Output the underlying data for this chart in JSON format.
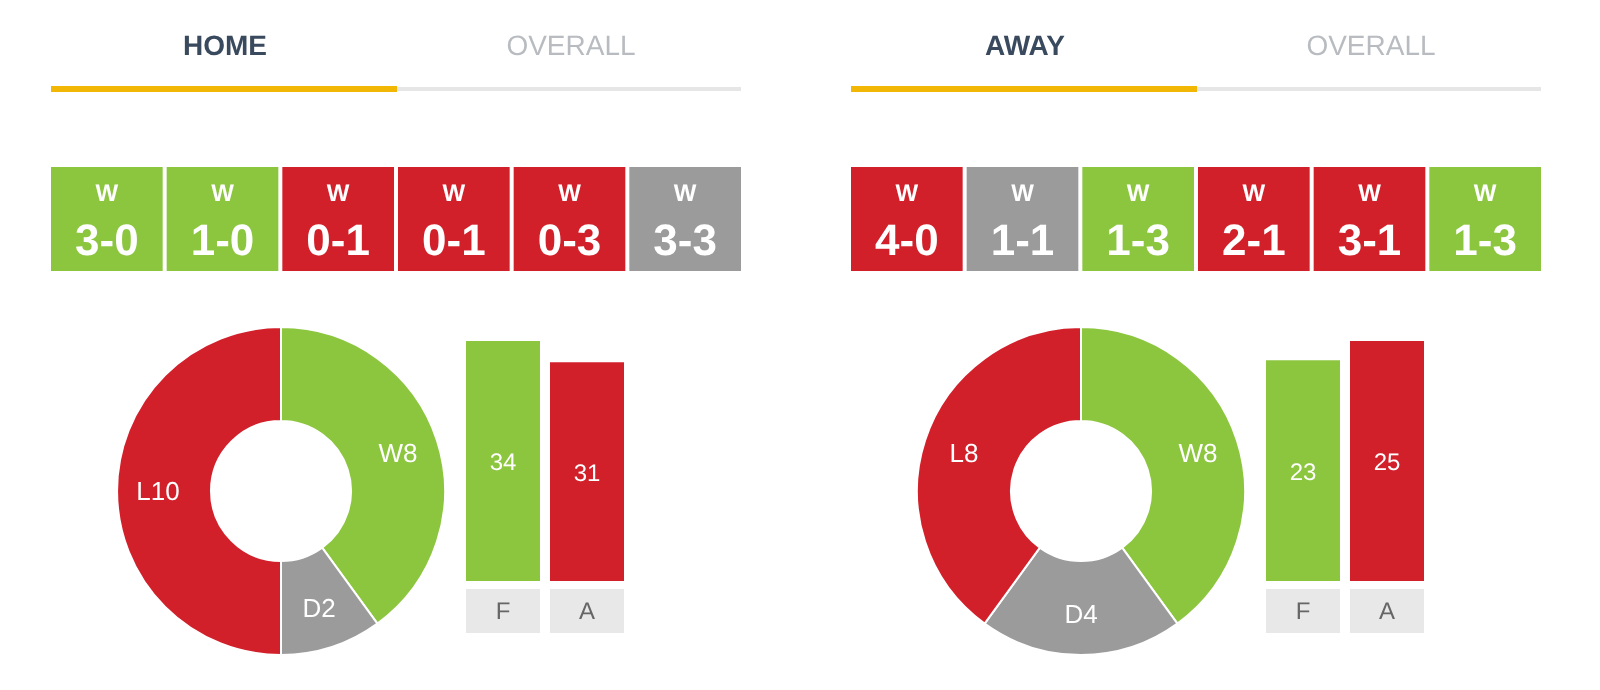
{
  "chart_data": [
    {
      "type": "other",
      "title": "HOME",
      "subtitle": "OVERALL",
      "categories": [
        "3-0",
        "1-0",
        "0-1",
        "0-1",
        "0-3",
        "3-3"
      ],
      "value_labels": [
        "W",
        "W",
        "W",
        "W",
        "W",
        "W"
      ],
      "colors": [
        "#8cc63f",
        "#8cc63f",
        "#d2202b",
        "#d2202b",
        "#d2202b",
        "#9b9b9b"
      ]
    },
    {
      "type": "donut",
      "categories": [
        null,
        null,
        null
      ],
      "values": [
        8,
        2,
        10
      ],
      "colors": [
        "#8cc63f",
        "#9b9b9b",
        "#d2202b"
      ],
      "value_labels": [
        "W8",
        "D2",
        "L10"
      ]
    },
    {
      "type": "bar",
      "categories": [
        "F",
        "A"
      ],
      "values": [
        34,
        31
      ],
      "colors": [
        "#8cc63f",
        "#d2202b"
      ],
      "data_labels": true
    },
    {
      "type": "other",
      "title": "AWAY",
      "subtitle": "OVERALL",
      "categories": [
        "4-0",
        "1-1",
        "1-3",
        "2-1",
        "3-1",
        "1-3"
      ],
      "value_labels": [
        "W",
        "W",
        "W",
        "W",
        "W",
        "W"
      ],
      "colors": [
        "#d2202b",
        "#9b9b9b",
        "#8cc63f",
        "#d2202b",
        "#d2202b",
        "#8cc63f"
      ]
    },
    {
      "type": "donut",
      "categories": [
        null,
        null,
        null
      ],
      "values": [
        8,
        4,
        8
      ],
      "colors": [
        "#8cc63f",
        "#9b9b9b",
        "#d2202b"
      ],
      "value_labels": [
        "W8",
        "D4",
        "L8"
      ]
    },
    {
      "type": "bar",
      "categories": [
        "F",
        "A"
      ],
      "values": [
        23,
        25
      ],
      "colors": [
        "#8cc63f",
        "#d2202b"
      ],
      "data_labels": true
    }
  ]
}
